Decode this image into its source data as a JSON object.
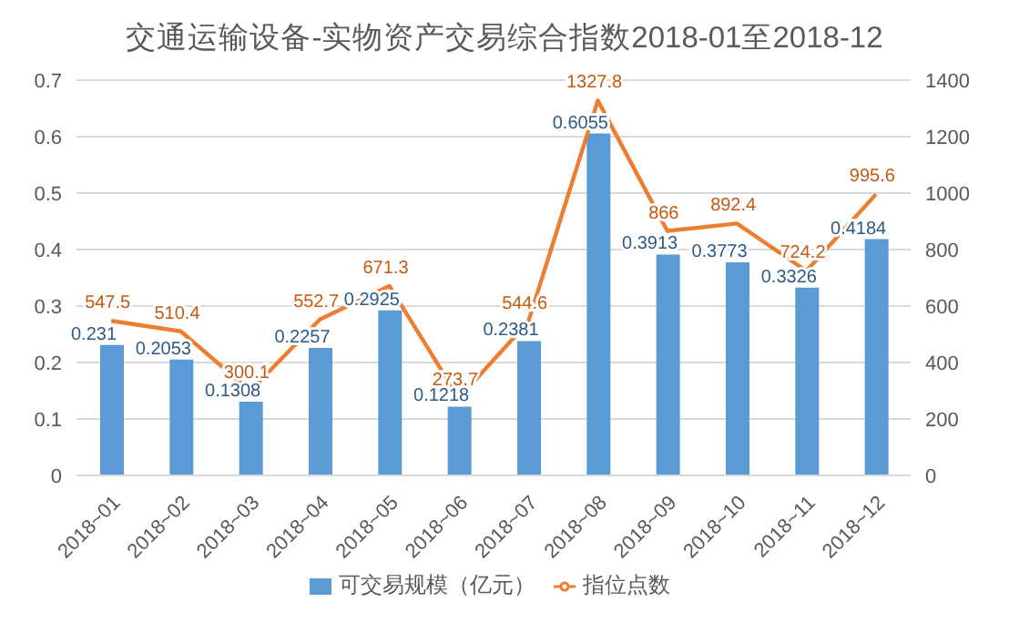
{
  "chart_data": {
    "type": "bar",
    "title": "交通运输设备-实物资产交易综合指数2018-01至2018-12",
    "categories": [
      "2018~01",
      "2018~02",
      "2018~03",
      "2018~04",
      "2018~05",
      "2018~06",
      "2018~07",
      "2018~08",
      "2018~09",
      "2018~10",
      "2018~11",
      "2018~12"
    ],
    "series": [
      {
        "name": "可交易规模（亿元）",
        "color": "#5b9bd5",
        "values": [
          0.231,
          0.2053,
          0.1308,
          0.2257,
          0.2925,
          0.1218,
          0.2381,
          0.6055,
          0.3913,
          0.3773,
          0.3326,
          0.4184
        ]
      },
      {
        "name": "指位点数",
        "type": "line",
        "axis": "y2",
        "color": "#ed7d31",
        "values": [
          547.5,
          510.4,
          300.1,
          552.7,
          671.3,
          273.7,
          544.6,
          1327.8,
          866,
          892.4,
          724.2,
          995.6
        ]
      }
    ],
    "ylim": [
      0,
      0.7
    ],
    "yticks": [
      0,
      0.1,
      0.2,
      0.3,
      0.4,
      0.5,
      0.6,
      0.7
    ],
    "y2lim": [
      0,
      1400
    ],
    "y2ticks": [
      0,
      200,
      400,
      600,
      800,
      1000,
      1200,
      1400
    ],
    "grid": "y",
    "legend": "bottom",
    "data_labels": true,
    "marker": "none",
    "line_style": "solid"
  }
}
